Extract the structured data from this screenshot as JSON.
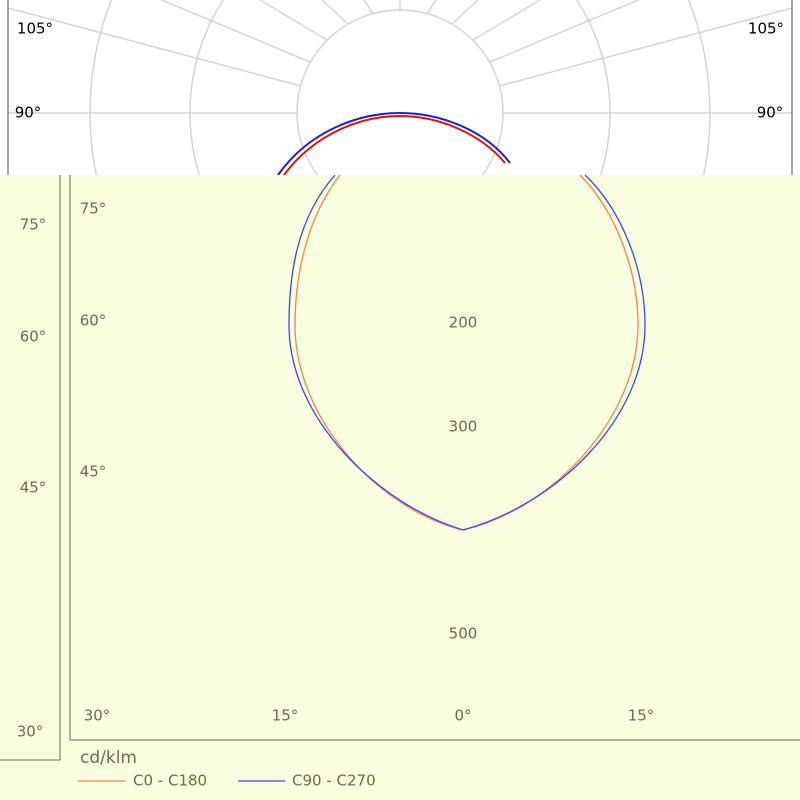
{
  "top_panel": {
    "left_labels": [
      "105°",
      "90°"
    ],
    "right_labels": [
      "105°",
      "90°"
    ]
  },
  "left_panel": {
    "angle_labels": [
      "75°",
      "60°",
      "45°",
      "30°"
    ]
  },
  "main_panel": {
    "angle_labels": [
      "75°",
      "60°",
      "45°"
    ],
    "bottom_labels": [
      "30°",
      "15°",
      "0°",
      "15°"
    ],
    "ring_labels": [
      "200",
      "300",
      "500"
    ]
  },
  "legend": {
    "unit": "cd/klm",
    "entries": [
      {
        "name": "C0 - C180",
        "color": "#ff8040"
      },
      {
        "name": "C90 - C270",
        "color": "#4040ff"
      }
    ]
  }
}
